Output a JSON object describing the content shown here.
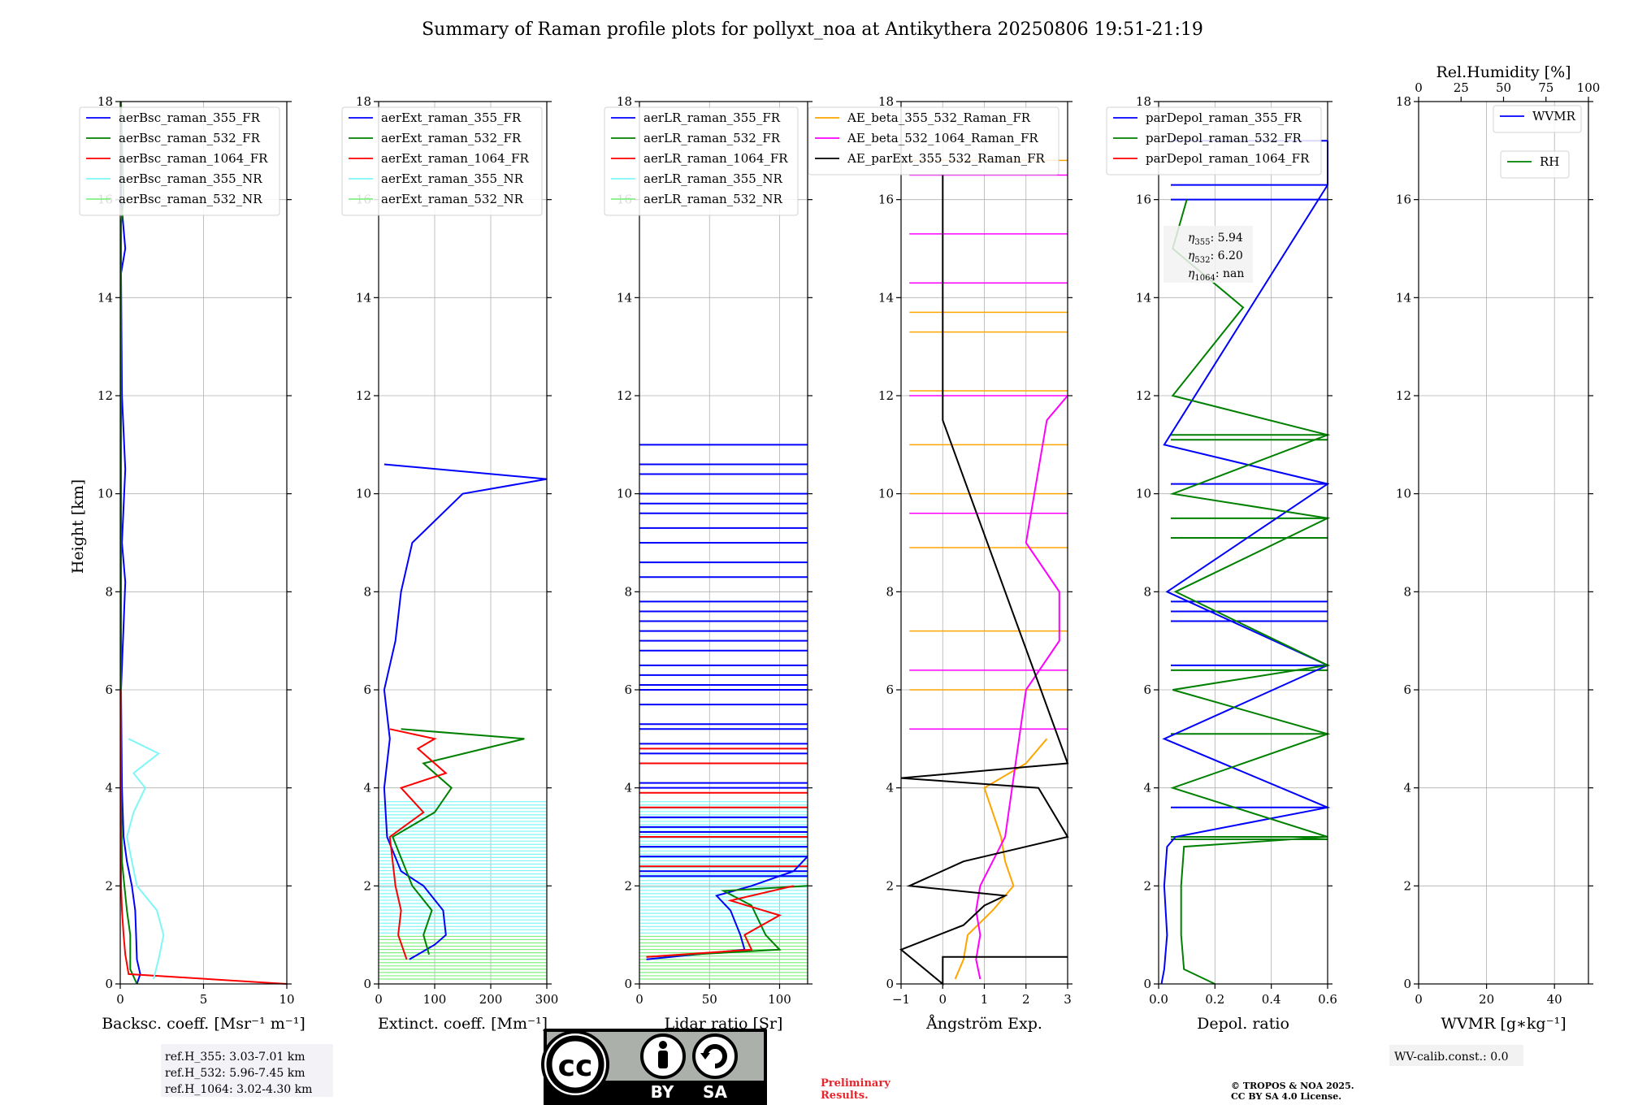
{
  "title": "Summary of Raman profile plots for pollyxt_noa at Antikythera 20250806 19:51-21:19",
  "ylabel": "Height [km]",
  "yticks": [
    "0",
    "2",
    "4",
    "6",
    "8",
    "10",
    "12",
    "14",
    "16",
    "18"
  ],
  "panels": [
    {
      "xlabel": "Backsc. coeff. [Msr⁻¹ m⁻¹]",
      "xticks": [
        "0",
        "5",
        "10"
      ]
    },
    {
      "xlabel": "Extinct. coeff. [Mm⁻¹]",
      "xticks": [
        "0",
        "100",
        "200",
        "300"
      ]
    },
    {
      "xlabel": "Lidar ratio [Sr]",
      "xticks": [
        "0",
        "50",
        "100"
      ]
    },
    {
      "xlabel": "Ångström Exp.",
      "xticks": [
        "−1",
        "0",
        "1",
        "2",
        "3"
      ]
    },
    {
      "xlabel": "Depol. ratio",
      "xticks": [
        "0.0",
        "0.2",
        "0.4",
        "0.6"
      ]
    },
    {
      "xlabel": "WVMR [g∗kg⁻¹]",
      "xticks": [
        "0",
        "20",
        "40"
      ],
      "top_label": "Rel.Humidity [%]",
      "top_ticks": [
        "0",
        "25",
        "50",
        "75",
        "100"
      ]
    }
  ],
  "legends": {
    "p1": [
      "aerBsc_raman_355_FR",
      "aerBsc_raman_532_FR",
      "aerBsc_raman_1064_FR",
      "aerBsc_raman_355_NR",
      "aerBsc_raman_532_NR"
    ],
    "p2": [
      "aerExt_raman_355_FR",
      "aerExt_raman_532_FR",
      "aerExt_raman_1064_FR",
      "aerExt_raman_355_NR",
      "aerExt_raman_532_NR"
    ],
    "p3": [
      "aerLR_raman_355_FR",
      "aerLR_raman_532_FR",
      "aerLR_raman_1064_FR",
      "aerLR_raman_355_NR",
      "aerLR_raman_532_NR"
    ],
    "p4": [
      "AE_beta_355_532_Raman_FR",
      "AE_beta_532_1064_Raman_FR",
      "AE_parExt_355_532_Raman_FR"
    ],
    "p5": [
      "parDepol_raman_355_FR",
      "parDepol_raman_532_FR",
      "parDepol_raman_1064_FR"
    ],
    "p6a": [
      "WVMR"
    ],
    "p6b": [
      "RH"
    ]
  },
  "eta_box": {
    "eta355": "5.94",
    "eta532": "6.20",
    "eta1064": "nan"
  },
  "ref_box": [
    "ref.H_355: 3.03-7.01 km",
    "ref.H_532: 5.96-7.45 km",
    "ref.H_1064: 3.02-4.30 km"
  ],
  "wv_calib": "WV-calib.const.: 0.0",
  "preliminary": [
    "Preliminary",
    "Results."
  ],
  "copyright": [
    "© TROPOS & NOA 2025.",
    "CC BY SA 4.0 License."
  ],
  "license_badge": {
    "by": "BY",
    "sa": "SA"
  },
  "colors": {
    "c355": "#0000ff",
    "c532": "#008000",
    "c1064": "#ff0000",
    "c355nr": "#7ff7f7",
    "c532nr": "#80f080",
    "ae1": "#ffa500",
    "ae2": "#ff00ff",
    "ae3": "#000000"
  },
  "chart_data": [
    {
      "type": "line",
      "panel": 1,
      "xlabel": "Backsc. coeff. [Msr⁻¹ m⁻¹]",
      "xlim": [
        0,
        10
      ],
      "ylim": [
        0,
        18
      ],
      "series": [
        {
          "name": "aerBsc_raman_355_FR",
          "points": [
            [
              1.0,
              0
            ],
            [
              1.2,
              0.2
            ],
            [
              1.0,
              0.5
            ],
            [
              0.95,
              1.0
            ],
            [
              0.9,
              1.5
            ],
            [
              0.7,
              2.0
            ],
            [
              0.4,
              2.5
            ],
            [
              0.2,
              3.0
            ],
            [
              0.1,
              4
            ],
            [
              0.05,
              6
            ],
            [
              0.3,
              8.2
            ],
            [
              0.1,
              9
            ],
            [
              0.3,
              10.5
            ],
            [
              0.1,
              12
            ],
            [
              0.05,
              14.5
            ],
            [
              0.3,
              15
            ],
            [
              0.05,
              16
            ],
            [
              0.05,
              18
            ]
          ]
        },
        {
          "name": "aerBsc_raman_532_FR",
          "points": [
            [
              1.0,
              0
            ],
            [
              0.6,
              0.3
            ],
            [
              0.6,
              1.0
            ],
            [
              0.4,
              1.5
            ],
            [
              0.25,
              2.0
            ],
            [
              0.1,
              2.5
            ],
            [
              0.05,
              4
            ],
            [
              0.05,
              15.5
            ],
            [
              0.2,
              16
            ],
            [
              0.05,
              18
            ]
          ]
        },
        {
          "name": "aerBsc_raman_1064_FR",
          "points": [
            [
              10,
              0
            ],
            [
              0.5,
              0.2
            ],
            [
              0.3,
              0.6
            ],
            [
              0.2,
              1.0
            ],
            [
              0.1,
              1.5
            ],
            [
              0.05,
              2.0
            ],
            [
              0.02,
              6
            ]
          ]
        },
        {
          "name": "aerBsc_raman_355_NR",
          "points": [
            [
              2.0,
              0.1
            ],
            [
              2.3,
              0.5
            ],
            [
              2.6,
              1.0
            ],
            [
              2.2,
              1.5
            ],
            [
              1.0,
              2.0
            ],
            [
              0.4,
              3.0
            ],
            [
              0.8,
              3.5
            ],
            [
              1.5,
              4.0
            ],
            [
              0.8,
              4.3
            ],
            [
              2.3,
              4.7
            ],
            [
              0.5,
              5.0
            ]
          ]
        },
        {
          "name": "aerBsc_raman_532_NR",
          "points": []
        }
      ]
    },
    {
      "type": "line",
      "panel": 2,
      "xlabel": "Extinct. coeff. [Mm⁻¹]",
      "xlim": [
        0,
        300
      ],
      "ylim": [
        0,
        18
      ],
      "series": [
        {
          "name": "aerExt_raman_355_FR",
          "points": [
            [
              55,
              0.5
            ],
            [
              100,
              0.8
            ],
            [
              120,
              1.0
            ],
            [
              115,
              1.5
            ],
            [
              80,
              2.0
            ],
            [
              40,
              2.3
            ],
            [
              15,
              3.0
            ],
            [
              10,
              4.0
            ],
            [
              20,
              5.0
            ],
            [
              10,
              6.0
            ],
            [
              30,
              7.0
            ],
            [
              40,
              8.0
            ],
            [
              60,
              9.0
            ],
            [
              150,
              10.0
            ],
            [
              300,
              10.3
            ],
            [
              10,
              10.6
            ]
          ]
        },
        {
          "name": "aerExt_raman_532_FR",
          "points": [
            [
              90,
              0.6
            ],
            [
              80,
              1.0
            ],
            [
              95,
              1.5
            ],
            [
              60,
              2.0
            ],
            [
              25,
              3.0
            ],
            [
              100,
              3.5
            ],
            [
              130,
              4.0
            ],
            [
              80,
              4.5
            ],
            [
              260,
              5.0
            ],
            [
              40,
              5.2
            ]
          ]
        },
        {
          "name": "aerExt_raman_1064_FR",
          "points": [
            [
              50,
              0.5
            ],
            [
              35,
              1.0
            ],
            [
              40,
              1.5
            ],
            [
              30,
              2.0
            ],
            [
              20,
              3.0
            ],
            [
              80,
              3.5
            ],
            [
              40,
              4.0
            ],
            [
              120,
              4.3
            ],
            [
              70,
              4.8
            ],
            [
              100,
              5.0
            ],
            [
              20,
              5.2
            ]
          ]
        },
        {
          "name": "aerExt_raman_355_NR",
          "points": []
        },
        {
          "name": "aerExt_raman_532_NR",
          "points": []
        }
      ]
    },
    {
      "type": "line",
      "panel": 3,
      "xlabel": "Lidar ratio [Sr]",
      "xlim": [
        0,
        120
      ],
      "ylim": [
        0,
        18
      ],
      "series": [
        {
          "name": "aerLR_raman_355_FR",
          "points": [
            [
              5,
              0.5
            ],
            [
              75,
              0.7
            ],
            [
              72,
              1.0
            ],
            [
              65,
              1.5
            ],
            [
              55,
              1.8
            ],
            [
              80,
              2.0
            ],
            [
              110,
              2.3
            ],
            [
              120,
              2.6
            ]
          ]
        },
        {
          "name": "aerLR_raman_532_FR",
          "points": [
            [
              5,
              0.55
            ],
            [
              100,
              0.7
            ],
            [
              90,
              1.0
            ],
            [
              85,
              1.3
            ],
            [
              80,
              1.6
            ],
            [
              60,
              1.9
            ],
            [
              120,
              2.0
            ]
          ]
        },
        {
          "name": "aerLR_raman_1064_FR",
          "points": [
            [
              5,
              0.55
            ],
            [
              80,
              0.7
            ],
            [
              75,
              1.0
            ],
            [
              100,
              1.4
            ],
            [
              65,
              1.7
            ],
            [
              110,
              2.0
            ]
          ]
        },
        {
          "name": "aerLR_raman_355_NR",
          "points": []
        },
        {
          "name": "aerLR_raman_532_NR",
          "points": []
        }
      ]
    },
    {
      "type": "line",
      "panel": 4,
      "xlabel": "Ångström Exp.",
      "xlim": [
        -1,
        3
      ],
      "ylim": [
        0,
        18
      ],
      "series": [
        {
          "name": "AE_beta_355_532_Raman_FR",
          "points": [
            [
              0.3,
              0.1
            ],
            [
              0.5,
              0.5
            ],
            [
              0.6,
              1.0
            ],
            [
              1.2,
              1.5
            ],
            [
              1.7,
              2.0
            ],
            [
              1.5,
              2.5
            ],
            [
              1.4,
              3.0
            ],
            [
              1.0,
              4.0
            ],
            [
              2.0,
              4.5
            ],
            [
              2.5,
              5.0
            ]
          ]
        },
        {
          "name": "AE_beta_532_1064_Raman_FR",
          "points": [
            [
              0.9,
              0.1
            ],
            [
              0.8,
              0.5
            ],
            [
              0.9,
              1.0
            ],
            [
              0.8,
              1.5
            ],
            [
              0.9,
              2.0
            ],
            [
              1.5,
              3.0
            ],
            [
              2.0,
              6.0
            ],
            [
              2.8,
              7.0
            ],
            [
              2.8,
              8.0
            ],
            [
              2.0,
              9.0
            ],
            [
              2.5,
              11.5
            ],
            [
              3.0,
              12.0
            ]
          ]
        },
        {
          "name": "AE_parExt_355_532_Raman_FR",
          "points": [
            [
              3.0,
              0.55
            ],
            [
              0.0,
              0.55
            ],
            [
              0.0,
              0.0
            ],
            [
              -1,
              0.7
            ],
            [
              0.5,
              1.2
            ],
            [
              1.0,
              1.6
            ],
            [
              1.5,
              1.8
            ],
            [
              -0.8,
              2.0
            ],
            [
              0.5,
              2.5
            ],
            [
              3.0,
              3.0
            ],
            [
              2.3,
              4.0
            ],
            [
              -1,
              4.2
            ],
            [
              3.0,
              4.5
            ],
            [
              0.0,
              11.5
            ],
            [
              0.0,
              16.5
            ]
          ]
        }
      ]
    },
    {
      "type": "line",
      "panel": 5,
      "xlabel": "Depol. ratio",
      "xlim": [
        0,
        0.6
      ],
      "ylim": [
        0,
        18
      ],
      "series": [
        {
          "name": "parDepol_raman_355_FR",
          "points": [
            [
              0.01,
              0
            ],
            [
              0.02,
              0.3
            ],
            [
              0.03,
              1.0
            ],
            [
              0.02,
              2.0
            ],
            [
              0.03,
              2.8
            ],
            [
              0.06,
              3.0
            ],
            [
              0.6,
              3.6
            ],
            [
              0.02,
              5.0
            ],
            [
              0.6,
              6.5
            ],
            [
              0.03,
              8.0
            ],
            [
              0.6,
              10.2
            ],
            [
              0.02,
              11.0
            ],
            [
              0.6,
              16.3
            ],
            [
              0.6,
              17.2
            ]
          ]
        },
        {
          "name": "parDepol_raman_532_FR",
          "points": [
            [
              0.2,
              0
            ],
            [
              0.09,
              0.3
            ],
            [
              0.08,
              1.0
            ],
            [
              0.08,
              2.0
            ],
            [
              0.09,
              2.8
            ],
            [
              0.6,
              3.0
            ],
            [
              0.05,
              4.0
            ],
            [
              0.6,
              5.1
            ],
            [
              0.05,
              6.0
            ],
            [
              0.6,
              6.5
            ],
            [
              0.06,
              8.0
            ],
            [
              0.6,
              9.5
            ],
            [
              0.05,
              10.0
            ],
            [
              0.6,
              11.2
            ],
            [
              0.05,
              12.0
            ],
            [
              0.3,
              13.8
            ],
            [
              0.05,
              15.0
            ],
            [
              0.1,
              16.0
            ]
          ]
        },
        {
          "name": "parDepol_raman_1064_FR",
          "points": []
        }
      ]
    },
    {
      "type": "line",
      "panel": 6,
      "xlabel": "WVMR [g∗kg⁻¹]",
      "xlim": [
        0,
        50
      ],
      "ylim": [
        0,
        18
      ],
      "series": [
        {
          "name": "WVMR",
          "points": []
        },
        {
          "name": "RH",
          "points": []
        }
      ]
    }
  ]
}
